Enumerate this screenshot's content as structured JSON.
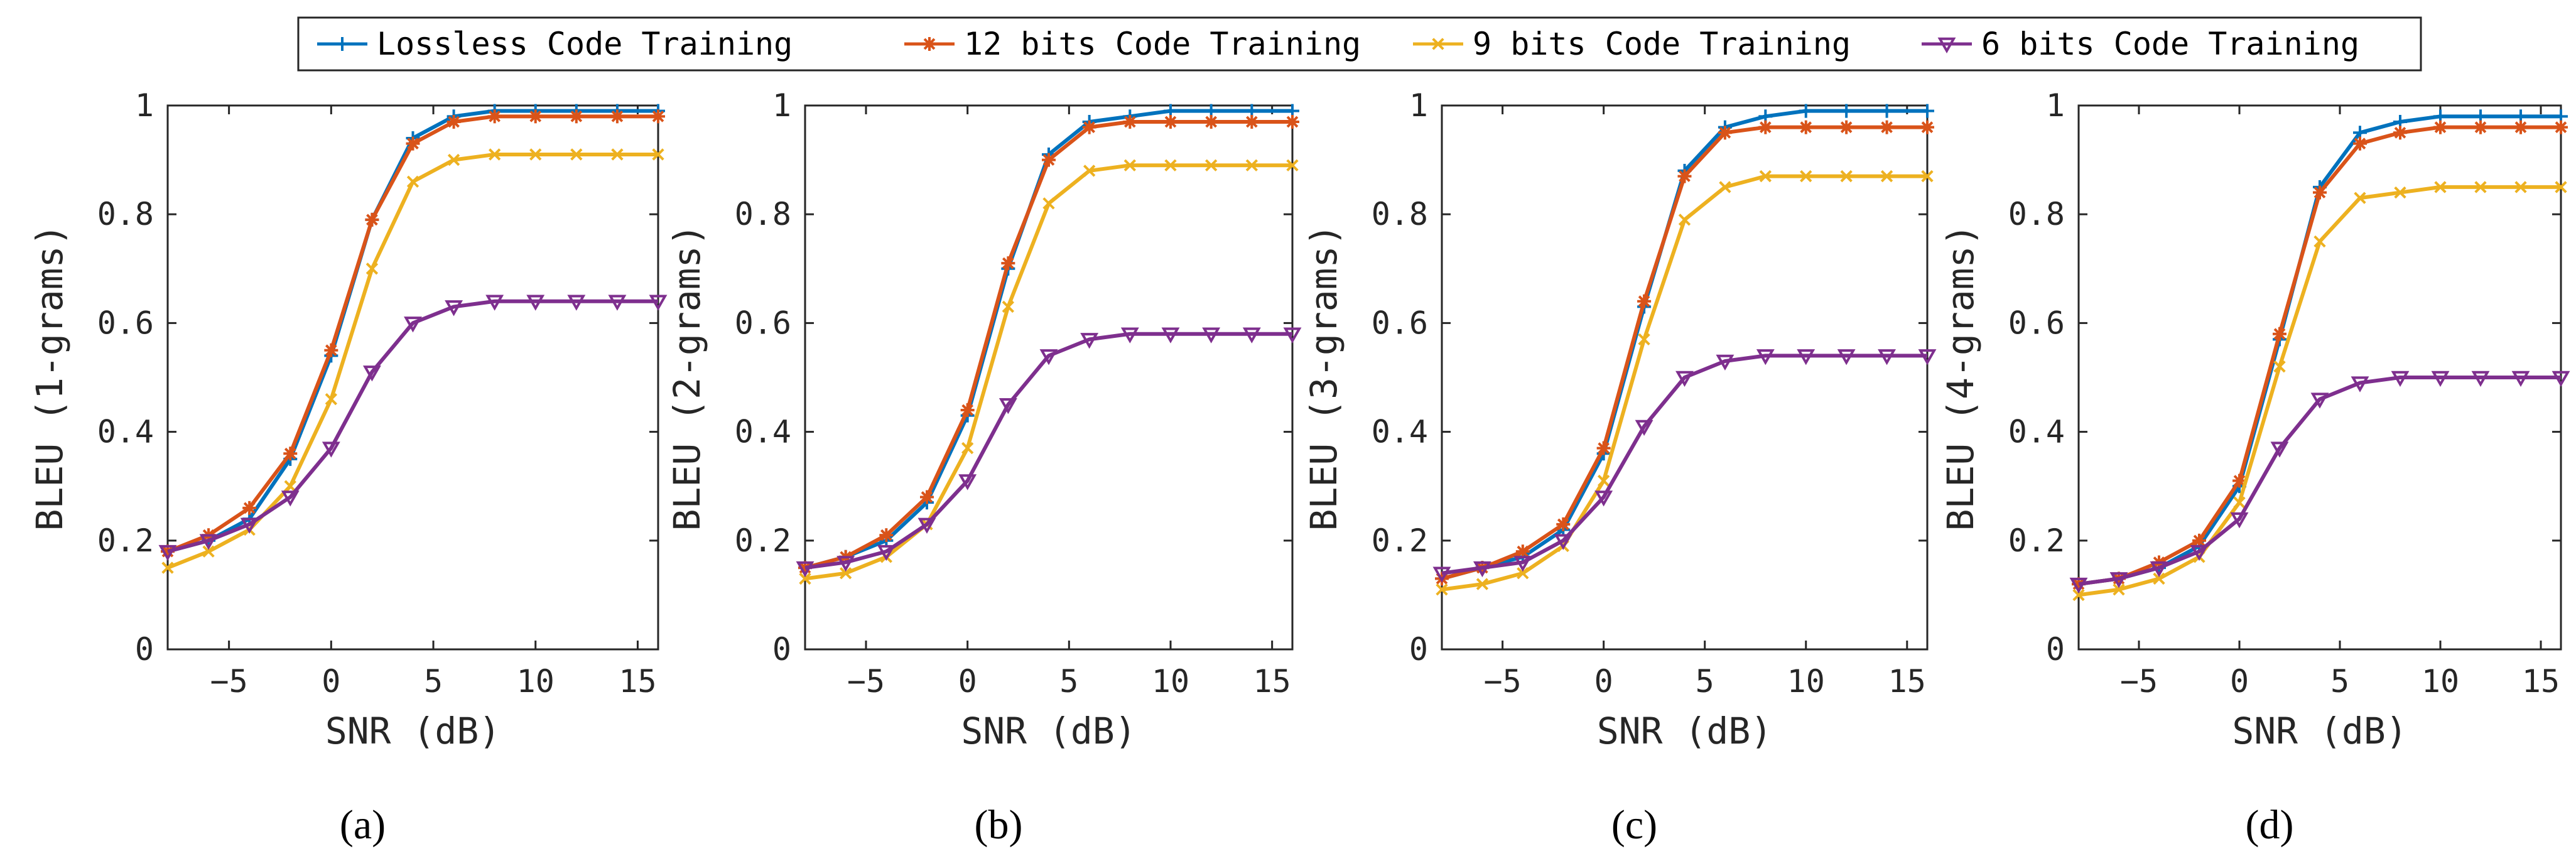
{
  "legend": [
    {
      "label": "Lossless Code Training",
      "color": "#0072BD",
      "marker": "plus"
    },
    {
      "label": "12 bits Code Training",
      "color": "#D95319",
      "marker": "star"
    },
    {
      "label": "9 bits Code Training",
      "color": "#EDB120",
      "marker": "x"
    },
    {
      "label": "6 bits Code Training",
      "color": "#7E2F8E",
      "marker": "triangle-down"
    }
  ],
  "chart_data": [
    {
      "type": "line",
      "caption": "(a)",
      "xlabel": "SNR (dB)",
      "ylabel": "BLEU (1-grams)",
      "xlim": [
        -8,
        16
      ],
      "ylim": [
        0,
        1
      ],
      "xticks": [
        -5,
        0,
        5,
        10,
        15
      ],
      "xtick_labels": [
        "−5",
        "0",
        "5",
        "10",
        "15"
      ],
      "yticks": [
        0,
        0.2,
        0.4,
        0.6,
        0.8,
        1
      ],
      "ytick_labels": [
        "0",
        "0.2",
        "0.4",
        "0.6",
        "0.8",
        "1"
      ],
      "x": [
        -8,
        -6,
        -4,
        -2,
        0,
        2,
        4,
        6,
        8,
        10,
        12,
        14,
        16
      ],
      "series": [
        {
          "name": "Lossless Code Training",
          "values": [
            0.18,
            0.2,
            0.24,
            0.35,
            0.54,
            0.79,
            0.94,
            0.98,
            0.99,
            0.99,
            0.99,
            0.99,
            0.99
          ]
        },
        {
          "name": "12 bits Code Training",
          "values": [
            0.18,
            0.21,
            0.26,
            0.36,
            0.55,
            0.79,
            0.93,
            0.97,
            0.98,
            0.98,
            0.98,
            0.98,
            0.98
          ]
        },
        {
          "name": "9 bits Code Training",
          "values": [
            0.15,
            0.18,
            0.22,
            0.3,
            0.46,
            0.7,
            0.86,
            0.9,
            0.91,
            0.91,
            0.91,
            0.91,
            0.91
          ]
        },
        {
          "name": "6 bits Code Training",
          "values": [
            0.18,
            0.2,
            0.23,
            0.28,
            0.37,
            0.51,
            0.6,
            0.63,
            0.64,
            0.64,
            0.64,
            0.64,
            0.64
          ]
        }
      ]
    },
    {
      "type": "line",
      "caption": "(b)",
      "xlabel": "SNR (dB)",
      "ylabel": "BLEU (2-grams)",
      "xlim": [
        -8,
        16
      ],
      "ylim": [
        0,
        1
      ],
      "xticks": [
        -5,
        0,
        5,
        10,
        15
      ],
      "xtick_labels": [
        "−5",
        "0",
        "5",
        "10",
        "15"
      ],
      "yticks": [
        0,
        0.2,
        0.4,
        0.6,
        0.8,
        1
      ],
      "ytick_labels": [
        "0",
        "0.2",
        "0.4",
        "0.6",
        "0.8",
        "1"
      ],
      "x": [
        -8,
        -6,
        -4,
        -2,
        0,
        2,
        4,
        6,
        8,
        10,
        12,
        14,
        16
      ],
      "series": [
        {
          "name": "Lossless Code Training",
          "values": [
            0.15,
            0.17,
            0.2,
            0.27,
            0.43,
            0.7,
            0.91,
            0.97,
            0.98,
            0.99,
            0.99,
            0.99,
            0.99
          ]
        },
        {
          "name": "12 bits Code Training",
          "values": [
            0.15,
            0.17,
            0.21,
            0.28,
            0.44,
            0.71,
            0.9,
            0.96,
            0.97,
            0.97,
            0.97,
            0.97,
            0.97
          ]
        },
        {
          "name": "9 bits Code Training",
          "values": [
            0.13,
            0.14,
            0.17,
            0.23,
            0.37,
            0.63,
            0.82,
            0.88,
            0.89,
            0.89,
            0.89,
            0.89,
            0.89
          ]
        },
        {
          "name": "6 bits Code Training",
          "values": [
            0.15,
            0.16,
            0.18,
            0.23,
            0.31,
            0.45,
            0.54,
            0.57,
            0.58,
            0.58,
            0.58,
            0.58,
            0.58
          ]
        }
      ]
    },
    {
      "type": "line",
      "caption": "(c)",
      "xlabel": "SNR (dB)",
      "ylabel": "BLEU (3-grams)",
      "xlim": [
        -8,
        16
      ],
      "ylim": [
        0,
        1
      ],
      "xticks": [
        -5,
        0,
        5,
        10,
        15
      ],
      "xtick_labels": [
        "−5",
        "0",
        "5",
        "10",
        "15"
      ],
      "yticks": [
        0,
        0.2,
        0.4,
        0.6,
        0.8,
        1
      ],
      "ytick_labels": [
        "0",
        "0.2",
        "0.4",
        "0.6",
        "0.8",
        "1"
      ],
      "x": [
        -8,
        -6,
        -4,
        -2,
        0,
        2,
        4,
        6,
        8,
        10,
        12,
        14,
        16
      ],
      "series": [
        {
          "name": "Lossless Code Training",
          "values": [
            0.13,
            0.15,
            0.17,
            0.22,
            0.36,
            0.63,
            0.88,
            0.96,
            0.98,
            0.99,
            0.99,
            0.99,
            0.99
          ]
        },
        {
          "name": "12 bits Code Training",
          "values": [
            0.13,
            0.15,
            0.18,
            0.23,
            0.37,
            0.64,
            0.87,
            0.95,
            0.96,
            0.96,
            0.96,
            0.96,
            0.96
          ]
        },
        {
          "name": "9 bits Code Training",
          "values": [
            0.11,
            0.12,
            0.14,
            0.19,
            0.31,
            0.57,
            0.79,
            0.85,
            0.87,
            0.87,
            0.87,
            0.87,
            0.87
          ]
        },
        {
          "name": "6 bits Code Training",
          "values": [
            0.14,
            0.15,
            0.16,
            0.2,
            0.28,
            0.41,
            0.5,
            0.53,
            0.54,
            0.54,
            0.54,
            0.54,
            0.54
          ]
        }
      ]
    },
    {
      "type": "line",
      "caption": "(d)",
      "xlabel": "SNR (dB)",
      "ylabel": "BLEU (4-grams)",
      "xlim": [
        -8,
        16
      ],
      "ylim": [
        0,
        1
      ],
      "xticks": [
        -5,
        0,
        5,
        10,
        15
      ],
      "xtick_labels": [
        "−5",
        "0",
        "5",
        "10",
        "15"
      ],
      "yticks": [
        0,
        0.2,
        0.4,
        0.6,
        0.8,
        1
      ],
      "ytick_labels": [
        "0",
        "0.2",
        "0.4",
        "0.6",
        "0.8",
        "1"
      ],
      "x": [
        -8,
        -6,
        -4,
        -2,
        0,
        2,
        4,
        6,
        8,
        10,
        12,
        14,
        16
      ],
      "series": [
        {
          "name": "Lossless Code Training",
          "values": [
            0.12,
            0.13,
            0.15,
            0.19,
            0.3,
            0.57,
            0.85,
            0.95,
            0.97,
            0.98,
            0.98,
            0.98,
            0.98
          ]
        },
        {
          "name": "12 bits Code Training",
          "values": [
            0.12,
            0.13,
            0.16,
            0.2,
            0.31,
            0.58,
            0.84,
            0.93,
            0.95,
            0.96,
            0.96,
            0.96,
            0.96
          ]
        },
        {
          "name": "9 bits Code Training",
          "values": [
            0.1,
            0.11,
            0.13,
            0.17,
            0.27,
            0.52,
            0.75,
            0.83,
            0.84,
            0.85,
            0.85,
            0.85,
            0.85
          ]
        },
        {
          "name": "6 bits Code Training",
          "values": [
            0.12,
            0.13,
            0.15,
            0.18,
            0.24,
            0.37,
            0.46,
            0.49,
            0.5,
            0.5,
            0.5,
            0.5,
            0.5
          ]
        }
      ]
    }
  ]
}
